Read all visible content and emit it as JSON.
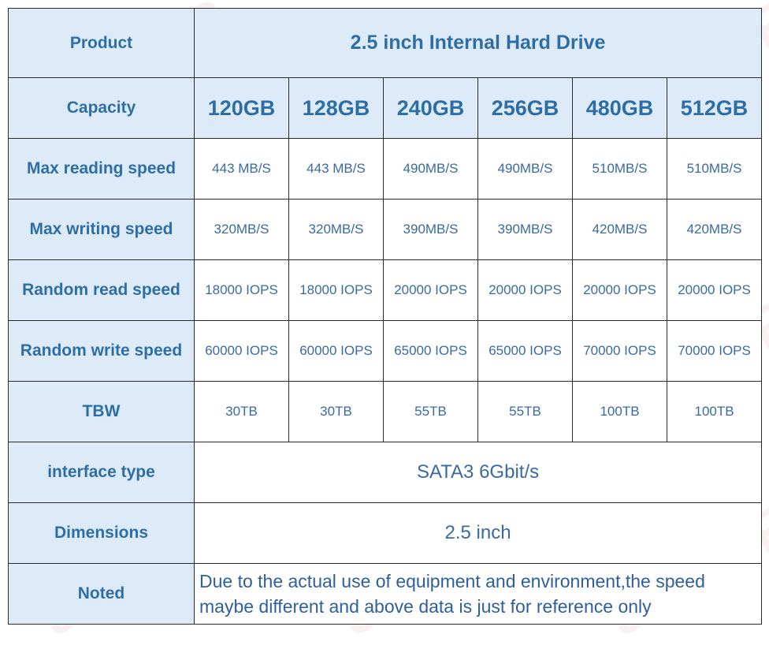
{
  "watermark": "JAZER",
  "product": {
    "label": "Product",
    "value": "2.5 inch Internal Hard Drive"
  },
  "capacity": {
    "label": "Capacity",
    "values": [
      "120GB",
      "128GB",
      "240GB",
      "256GB",
      "480GB",
      "512GB"
    ]
  },
  "rows": [
    {
      "label": "Max reading speed",
      "values": [
        "443 MB/S",
        "443 MB/S",
        "490MB/S",
        "490MB/S",
        "510MB/S",
        "510MB/S"
      ]
    },
    {
      "label": "Max writing speed",
      "values": [
        "320MB/S",
        "320MB/S",
        "390MB/S",
        "390MB/S",
        "420MB/S",
        "420MB/S"
      ]
    },
    {
      "label": "Random read speed",
      "values": [
        "18000 IOPS",
        "18000 IOPS",
        "20000 IOPS",
        "20000 IOPS",
        "20000 IOPS",
        "20000 IOPS"
      ]
    },
    {
      "label": "Random write speed",
      "values": [
        "60000 IOPS",
        "60000 IOPS",
        "65000 IOPS",
        "65000 IOPS",
        "70000 IOPS",
        "70000 IOPS"
      ]
    },
    {
      "label": "TBW",
      "values": [
        "30TB",
        "30TB",
        "55TB",
        "55TB",
        "100TB",
        "100TB"
      ]
    }
  ],
  "interface": {
    "label": "interface type",
    "value": "SATA3 6Gbit/s"
  },
  "dimensions": {
    "label": "Dimensions",
    "value": "2.5 inch"
  },
  "noted": {
    "label": "Noted",
    "line1": "Due to the actual use of equipment and environment,the speed",
    "line2": "maybe different and above data is just for reference only"
  }
}
